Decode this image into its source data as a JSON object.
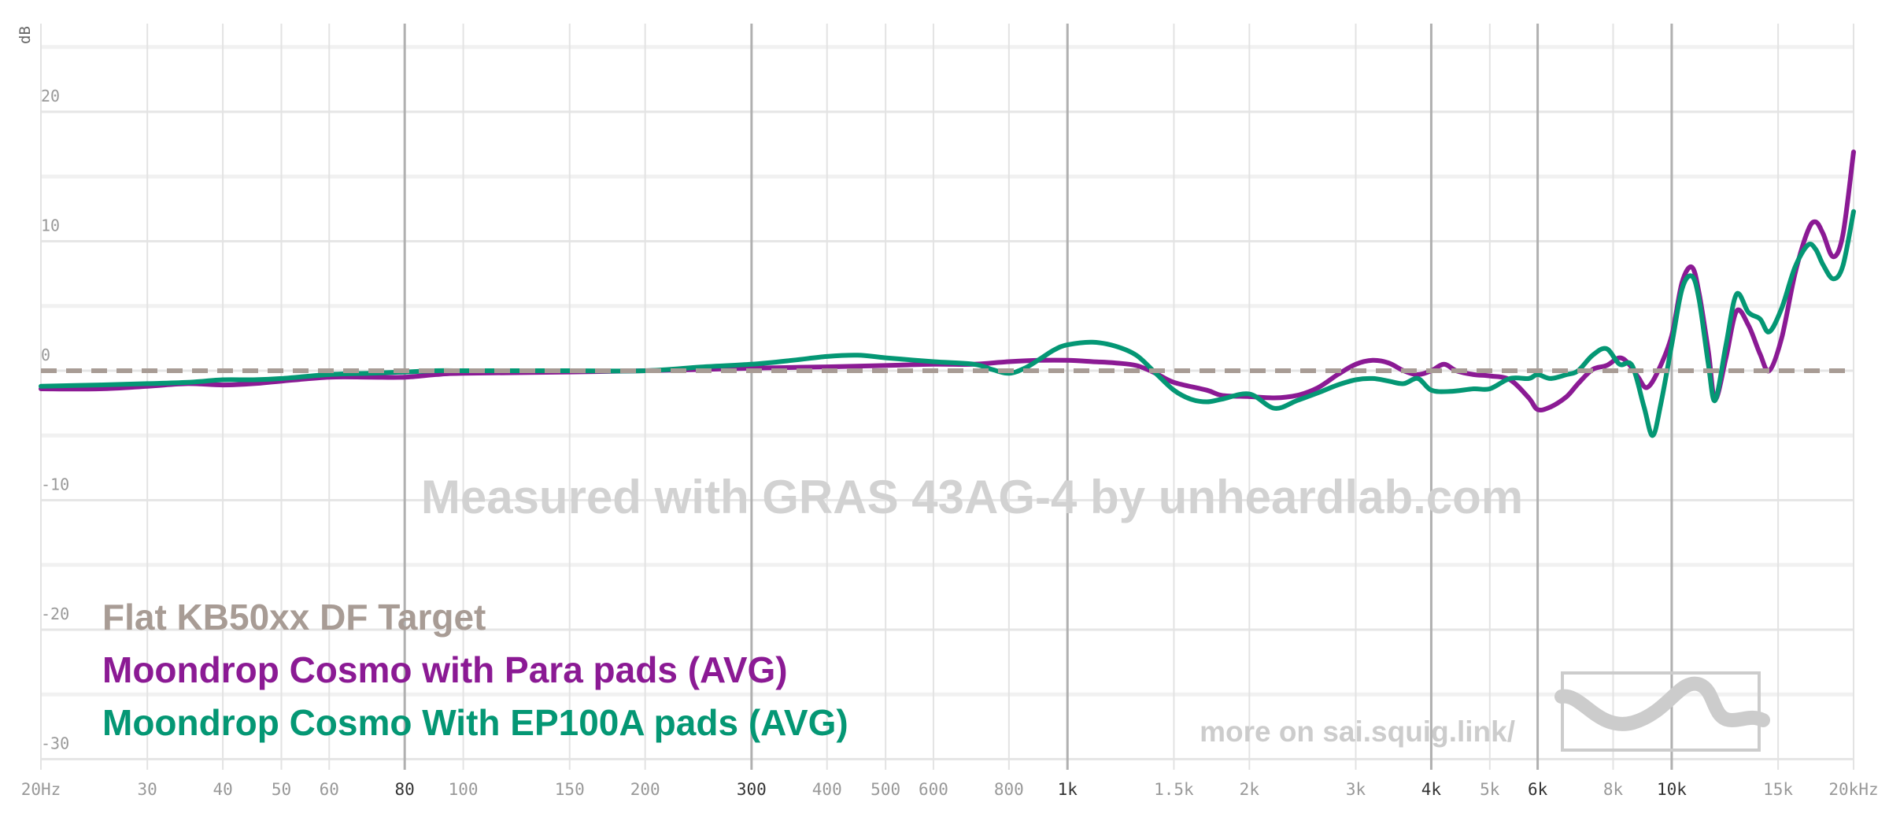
{
  "chart_data": {
    "type": "line",
    "ylabel": "dB",
    "xscale": "log",
    "xlim": [
      20,
      20000
    ],
    "ylim": [
      -30,
      25
    ],
    "yticks": [
      {
        "value": 20,
        "label": "20"
      },
      {
        "value": 10,
        "label": "10"
      },
      {
        "value": 0,
        "label": "0"
      },
      {
        "value": -10,
        "label": "-10"
      },
      {
        "value": -20,
        "label": "-20"
      },
      {
        "value": -30,
        "label": "-30"
      }
    ],
    "xticks": [
      {
        "value": 20,
        "label": "20Hz",
        "major": false
      },
      {
        "value": 30,
        "label": "30",
        "major": false
      },
      {
        "value": 40,
        "label": "40",
        "major": false
      },
      {
        "value": 50,
        "label": "50",
        "major": false
      },
      {
        "value": 60,
        "label": "60",
        "major": false
      },
      {
        "value": 80,
        "label": "80",
        "major": true
      },
      {
        "value": 100,
        "label": "100",
        "major": false
      },
      {
        "value": 150,
        "label": "150",
        "major": false
      },
      {
        "value": 200,
        "label": "200",
        "major": false
      },
      {
        "value": 300,
        "label": "300",
        "major": true
      },
      {
        "value": 400,
        "label": "400",
        "major": false
      },
      {
        "value": 500,
        "label": "500",
        "major": false
      },
      {
        "value": 600,
        "label": "600",
        "major": false
      },
      {
        "value": 800,
        "label": "800",
        "major": false
      },
      {
        "value": 1000,
        "label": "1k",
        "major": true
      },
      {
        "value": 1500,
        "label": "1.5k",
        "major": false
      },
      {
        "value": 2000,
        "label": "2k",
        "major": false
      },
      {
        "value": 3000,
        "label": "3k",
        "major": false
      },
      {
        "value": 4000,
        "label": "4k",
        "major": true
      },
      {
        "value": 5000,
        "label": "5k",
        "major": false
      },
      {
        "value": 6000,
        "label": "6k",
        "major": true
      },
      {
        "value": 8000,
        "label": "8k",
        "major": false
      },
      {
        "value": 10000,
        "label": "10k",
        "major": true
      },
      {
        "value": 15000,
        "label": "15k",
        "major": false
      },
      {
        "value": 20000,
        "label": "20kHz",
        "major": false
      }
    ],
    "grid": true,
    "legend_position": "bottom-left",
    "watermark": "Measured with GRAS 43AG-4 by unheardlab.com",
    "footer_text": "more on sai.squig.link/",
    "series": [
      {
        "name": "Flat KB50xx DF Target",
        "color": "#a89c95",
        "dashed": true,
        "points": [
          [
            20,
            0
          ],
          [
            20000,
            0
          ]
        ]
      },
      {
        "name": "Moondrop Cosmo with Para pads (AVG)",
        "color": "#8b1a94",
        "dashed": false,
        "points": [
          [
            20,
            -1.4
          ],
          [
            25,
            -1.4
          ],
          [
            30,
            -1.2
          ],
          [
            35,
            -1.0
          ],
          [
            40,
            -1.1
          ],
          [
            45,
            -1.0
          ],
          [
            50,
            -0.8
          ],
          [
            60,
            -0.5
          ],
          [
            70,
            -0.5
          ],
          [
            80,
            -0.5
          ],
          [
            90,
            -0.3
          ],
          [
            100,
            -0.2
          ],
          [
            150,
            -0.1
          ],
          [
            200,
            0.0
          ],
          [
            250,
            0.1
          ],
          [
            300,
            0.2
          ],
          [
            400,
            0.3
          ],
          [
            500,
            0.4
          ],
          [
            600,
            0.5
          ],
          [
            700,
            0.5
          ],
          [
            800,
            0.7
          ],
          [
            900,
            0.8
          ],
          [
            1000,
            0.8
          ],
          [
            1100,
            0.7
          ],
          [
            1200,
            0.6
          ],
          [
            1300,
            0.4
          ],
          [
            1400,
            -0.2
          ],
          [
            1500,
            -0.9
          ],
          [
            1700,
            -1.5
          ],
          [
            1800,
            -1.9
          ],
          [
            2000,
            -2.0
          ],
          [
            2200,
            -2.1
          ],
          [
            2400,
            -1.9
          ],
          [
            2600,
            -1.3
          ],
          [
            2800,
            -0.3
          ],
          [
            3000,
            0.5
          ],
          [
            3200,
            0.8
          ],
          [
            3400,
            0.6
          ],
          [
            3600,
            0.0
          ],
          [
            3800,
            -0.3
          ],
          [
            4000,
            0.0
          ],
          [
            4200,
            0.5
          ],
          [
            4400,
            0.0
          ],
          [
            4700,
            -0.3
          ],
          [
            5000,
            -0.4
          ],
          [
            5400,
            -0.7
          ],
          [
            5800,
            -2.1
          ],
          [
            6000,
            -3.0
          ],
          [
            6300,
            -2.8
          ],
          [
            6700,
            -2.0
          ],
          [
            7000,
            -1.0
          ],
          [
            7400,
            0.1
          ],
          [
            7800,
            0.4
          ],
          [
            8200,
            1.0
          ],
          [
            8500,
            0.5
          ],
          [
            8800,
            -0.5
          ],
          [
            9100,
            -1.3
          ],
          [
            9500,
            0.0
          ],
          [
            10000,
            2.7
          ],
          [
            10400,
            6.8
          ],
          [
            10800,
            8.0
          ],
          [
            11100,
            6.0
          ],
          [
            11500,
            1.5
          ],
          [
            11800,
            -2.2
          ],
          [
            12300,
            1.0
          ],
          [
            12800,
            4.6
          ],
          [
            13400,
            3.5
          ],
          [
            14000,
            1.3
          ],
          [
            14500,
            0.0
          ],
          [
            15200,
            2.5
          ],
          [
            16000,
            7.5
          ],
          [
            16800,
            10.8
          ],
          [
            17300,
            11.5
          ],
          [
            17800,
            10.6
          ],
          [
            18500,
            8.8
          ],
          [
            19200,
            10.5
          ],
          [
            20000,
            16.9
          ]
        ]
      },
      {
        "name": "Moondrop Cosmo With EP100A pads (AVG)",
        "color": "#049774",
        "dashed": false,
        "points": [
          [
            20,
            -1.2
          ],
          [
            25,
            -1.1
          ],
          [
            30,
            -1.0
          ],
          [
            35,
            -0.9
          ],
          [
            40,
            -0.7
          ],
          [
            45,
            -0.7
          ],
          [
            50,
            -0.6
          ],
          [
            60,
            -0.3
          ],
          [
            70,
            -0.2
          ],
          [
            80,
            -0.1
          ],
          [
            90,
            0.0
          ],
          [
            100,
            0.0
          ],
          [
            150,
            0.0
          ],
          [
            200,
            0.0
          ],
          [
            250,
            0.3
          ],
          [
            300,
            0.5
          ],
          [
            350,
            0.8
          ],
          [
            400,
            1.1
          ],
          [
            450,
            1.2
          ],
          [
            500,
            1.0
          ],
          [
            600,
            0.7
          ],
          [
            700,
            0.5
          ],
          [
            750,
            0.1
          ],
          [
            800,
            -0.2
          ],
          [
            850,
            0.2
          ],
          [
            900,
            0.9
          ],
          [
            950,
            1.6
          ],
          [
            1000,
            2.0
          ],
          [
            1100,
            2.2
          ],
          [
            1200,
            1.9
          ],
          [
            1300,
            1.2
          ],
          [
            1400,
            -0.2
          ],
          [
            1500,
            -1.5
          ],
          [
            1600,
            -2.2
          ],
          [
            1700,
            -2.4
          ],
          [
            1800,
            -2.2
          ],
          [
            2000,
            -1.8
          ],
          [
            2200,
            -2.9
          ],
          [
            2400,
            -2.3
          ],
          [
            2600,
            -1.7
          ],
          [
            2800,
            -1.1
          ],
          [
            3000,
            -0.7
          ],
          [
            3200,
            -0.6
          ],
          [
            3400,
            -0.8
          ],
          [
            3600,
            -1.0
          ],
          [
            3800,
            -0.6
          ],
          [
            4000,
            -1.5
          ],
          [
            4300,
            -1.6
          ],
          [
            4700,
            -1.4
          ],
          [
            5000,
            -1.4
          ],
          [
            5400,
            -0.6
          ],
          [
            5800,
            -0.6
          ],
          [
            6000,
            -0.3
          ],
          [
            6300,
            -0.6
          ],
          [
            6700,
            -0.3
          ],
          [
            7000,
            0.0
          ],
          [
            7400,
            1.2
          ],
          [
            7800,
            1.7
          ],
          [
            8200,
            0.5
          ],
          [
            8600,
            0.4
          ],
          [
            9000,
            -2.8
          ],
          [
            9300,
            -5.0
          ],
          [
            9600,
            -2.5
          ],
          [
            10000,
            2.0
          ],
          [
            10400,
            6.3
          ],
          [
            10800,
            7.3
          ],
          [
            11100,
            5.5
          ],
          [
            11500,
            0.5
          ],
          [
            11800,
            -2.3
          ],
          [
            12300,
            2.0
          ],
          [
            12800,
            5.9
          ],
          [
            13400,
            4.5
          ],
          [
            14000,
            4.0
          ],
          [
            14500,
            3.0
          ],
          [
            15200,
            4.8
          ],
          [
            16000,
            8.0
          ],
          [
            16800,
            9.7
          ],
          [
            17300,
            9.4
          ],
          [
            17800,
            8.2
          ],
          [
            18500,
            7.1
          ],
          [
            19200,
            8.1
          ],
          [
            20000,
            12.3
          ]
        ]
      }
    ]
  }
}
